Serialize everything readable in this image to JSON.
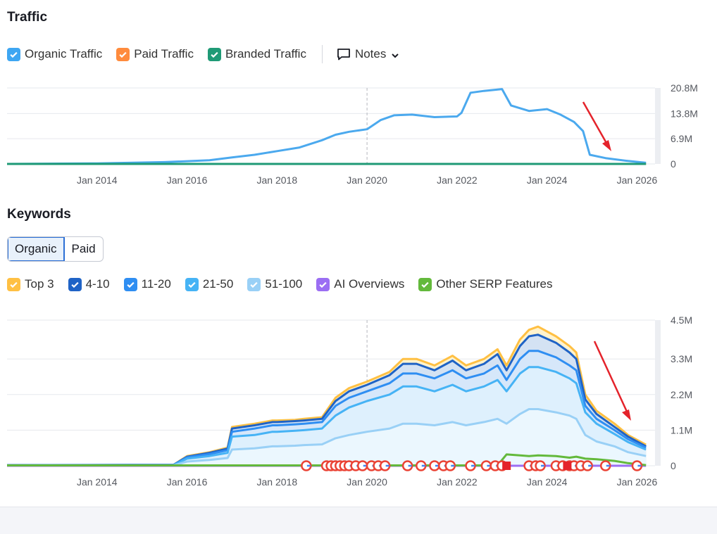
{
  "traffic": {
    "title": "Traffic",
    "legend": [
      {
        "label": "Organic Traffic",
        "color": "#3ea6f2"
      },
      {
        "label": "Paid Traffic",
        "color": "#ff8b3d"
      },
      {
        "label": "Branded Traffic",
        "color": "#1f9a76"
      }
    ],
    "notes_label": "Notes"
  },
  "keywords": {
    "title": "Keywords",
    "tabs": [
      {
        "label": "Organic",
        "active": true
      },
      {
        "label": "Paid",
        "active": false
      }
    ],
    "legend": [
      {
        "label": "Top 3",
        "color": "#ffc043"
      },
      {
        "label": "4-10",
        "color": "#1f63c6"
      },
      {
        "label": "11-20",
        "color": "#2f8ef2"
      },
      {
        "label": "21-50",
        "color": "#46b3f5"
      },
      {
        "label": "51-100",
        "color": "#99d0f6"
      },
      {
        "label": "AI Overviews",
        "color": "#9b6ef3"
      },
      {
        "label": "Other SERP Features",
        "color": "#63b93b"
      }
    ]
  },
  "chart_data": [
    {
      "type": "line",
      "ylim": [
        0,
        20800000
      ],
      "yticks": [
        "20.8M",
        "13.8M",
        "6.9M",
        "0"
      ],
      "ytick_values": [
        20800000,
        13800000,
        6900000,
        0
      ],
      "xticks": [
        "Jan 2014",
        "Jan 2016",
        "Jan 2018",
        "Jan 2020",
        "Jan 2022",
        "Jan 2024",
        "Jan 2026"
      ],
      "xtick_values": [
        2014,
        2016,
        2018,
        2020,
        2022,
        2024,
        2026
      ],
      "xlim": [
        2012.0,
        2026.4
      ],
      "series": [
        {
          "name": "Organic Traffic",
          "color": "#4ba9ee",
          "x": [
            2012.0,
            2014.0,
            2015.5,
            2016.5,
            2017.0,
            2017.5,
            2018.0,
            2018.5,
            2019.0,
            2019.3,
            2019.6,
            2020.0,
            2020.3,
            2020.6,
            2021.0,
            2021.5,
            2022.0,
            2022.1,
            2022.3,
            2022.6,
            2023.0,
            2023.2,
            2023.6,
            2024.0,
            2024.3,
            2024.6,
            2024.8,
            2024.95,
            2025.3,
            2025.8,
            2026.2
          ],
          "y": [
            0,
            150000,
            500000,
            1000000,
            1800000,
            2500000,
            3500000,
            4500000,
            6500000,
            8000000,
            8800000,
            9500000,
            12000000,
            13300000,
            13500000,
            12800000,
            13000000,
            14000000,
            19500000,
            20000000,
            20500000,
            16000000,
            14500000,
            15000000,
            13500000,
            11500000,
            9000000,
            2500000,
            1600000,
            800000,
            300000
          ]
        },
        {
          "name": "Paid Traffic",
          "color": "#ff8b3d",
          "x": [
            2012.0,
            2026.2
          ],
          "y": [
            0,
            0
          ]
        },
        {
          "name": "Branded Traffic",
          "color": "#1f9a76",
          "x": [
            2012.0,
            2026.2
          ],
          "y": [
            0,
            0
          ]
        }
      ]
    },
    {
      "type": "area",
      "ylim": [
        0,
        4500000
      ],
      "yticks": [
        "4.5M",
        "3.3M",
        "2.2M",
        "1.1M",
        "0"
      ],
      "ytick_values": [
        4500000,
        3300000,
        2200000,
        1100000,
        0
      ],
      "xticks": [
        "Jan 2014",
        "Jan 2016",
        "Jan 2018",
        "Jan 2020",
        "Jan 2022",
        "Jan 2024",
        "Jan 2026"
      ],
      "xtick_values": [
        2014,
        2016,
        2018,
        2020,
        2022,
        2024,
        2026
      ],
      "xlim": [
        2012.0,
        2026.4
      ],
      "x": [
        2012.0,
        2015.7,
        2016.0,
        2016.5,
        2016.9,
        2017.0,
        2017.5,
        2017.9,
        2018.0,
        2018.4,
        2018.6,
        2019.0,
        2019.3,
        2019.6,
        2020.0,
        2020.5,
        2020.8,
        2021.1,
        2021.5,
        2021.9,
        2022.2,
        2022.6,
        2022.9,
        2023.1,
        2023.4,
        2023.6,
        2023.8,
        2024.2,
        2024.5,
        2024.65,
        2024.85,
        2025.1,
        2025.5,
        2025.8,
        2026.2
      ],
      "series": [
        {
          "name": "Top 3",
          "color": "#ffc043",
          "values": [
            20000,
            30000,
            300000,
            420000,
            560000,
            1200000,
            1300000,
            1400000,
            1400000,
            1420000,
            1450000,
            1500000,
            2100000,
            2400000,
            2600000,
            2900000,
            3300000,
            3300000,
            3100000,
            3400000,
            3100000,
            3300000,
            3600000,
            3100000,
            3900000,
            4200000,
            4300000,
            4000000,
            3700000,
            3500000,
            2200000,
            1700000,
            1300000,
            950000,
            650000
          ]
        },
        {
          "name": "4-10",
          "color": "#1f63c6",
          "values": [
            20000,
            30000,
            280000,
            400000,
            530000,
            1150000,
            1250000,
            1350000,
            1350000,
            1380000,
            1400000,
            1450000,
            2000000,
            2300000,
            2500000,
            2800000,
            3150000,
            3150000,
            2950000,
            3250000,
            2950000,
            3150000,
            3450000,
            2950000,
            3700000,
            4000000,
            4050000,
            3800000,
            3500000,
            3300000,
            2050000,
            1600000,
            1200000,
            900000,
            600000
          ]
        },
        {
          "name": "11-20",
          "color": "#2f8ef2",
          "values": [
            15000,
            25000,
            260000,
            360000,
            480000,
            1050000,
            1150000,
            1250000,
            1250000,
            1280000,
            1300000,
            1350000,
            1850000,
            2100000,
            2300000,
            2550000,
            2850000,
            2850000,
            2700000,
            2950000,
            2700000,
            2850000,
            3100000,
            2650000,
            3300000,
            3550000,
            3550000,
            3350000,
            3100000,
            2950000,
            1850000,
            1450000,
            1100000,
            820000,
            560000
          ]
        },
        {
          "name": "21-50",
          "color": "#46b3f5",
          "values": [
            10000,
            20000,
            220000,
            300000,
            400000,
            900000,
            950000,
            1050000,
            1050000,
            1080000,
            1100000,
            1150000,
            1550000,
            1800000,
            2000000,
            2200000,
            2450000,
            2450000,
            2300000,
            2500000,
            2300000,
            2450000,
            2650000,
            2300000,
            2850000,
            3050000,
            3050000,
            2900000,
            2700000,
            2550000,
            1650000,
            1300000,
            980000,
            730000,
            500000
          ]
        },
        {
          "name": "51-100",
          "color": "#99d0f6",
          "values": [
            5000,
            10000,
            130000,
            180000,
            240000,
            500000,
            540000,
            600000,
            600000,
            620000,
            640000,
            660000,
            850000,
            950000,
            1050000,
            1150000,
            1300000,
            1300000,
            1250000,
            1350000,
            1250000,
            1350000,
            1450000,
            1300000,
            1600000,
            1750000,
            1750000,
            1650000,
            1550000,
            1450000,
            950000,
            750000,
            600000,
            420000,
            300000
          ]
        },
        {
          "name": "AI Overviews",
          "color": "#9b6ef3",
          "values": [
            0,
            0,
            0,
            0,
            0,
            0,
            0,
            0,
            0,
            0,
            0,
            0,
            0,
            0,
            0,
            0,
            0,
            0,
            0,
            0,
            0,
            0,
            0,
            0,
            0,
            0,
            0,
            0,
            0,
            0,
            0,
            0,
            0,
            0,
            0
          ]
        },
        {
          "name": "Other SERP Features",
          "color": "#63b93b",
          "values": [
            10000,
            10000,
            10000,
            10000,
            10000,
            10000,
            10000,
            10000,
            10000,
            10000,
            10000,
            10000,
            10000,
            10000,
            10000,
            10000,
            10000,
            10000,
            10000,
            10000,
            10000,
            10000,
            10000,
            350000,
            320000,
            300000,
            320000,
            300000,
            250000,
            280000,
            220000,
            200000,
            150000,
            80000,
            20000
          ]
        }
      ],
      "google_update_markers": [
        2018.65,
        2019.1,
        2019.2,
        2019.3,
        2019.4,
        2019.5,
        2019.6,
        2019.75,
        2019.9,
        2020.1,
        2020.25,
        2020.4,
        2020.9,
        2021.2,
        2021.5,
        2021.7,
        2021.85,
        2022.3,
        2022.65,
        2022.85,
        2023.0,
        2023.6,
        2023.75,
        2023.85,
        2024.2,
        2024.35,
        2024.5,
        2024.6,
        2024.75,
        2024.9,
        2025.3,
        2026.0
      ],
      "note_markers": [
        2023.1,
        2024.45
      ]
    }
  ]
}
